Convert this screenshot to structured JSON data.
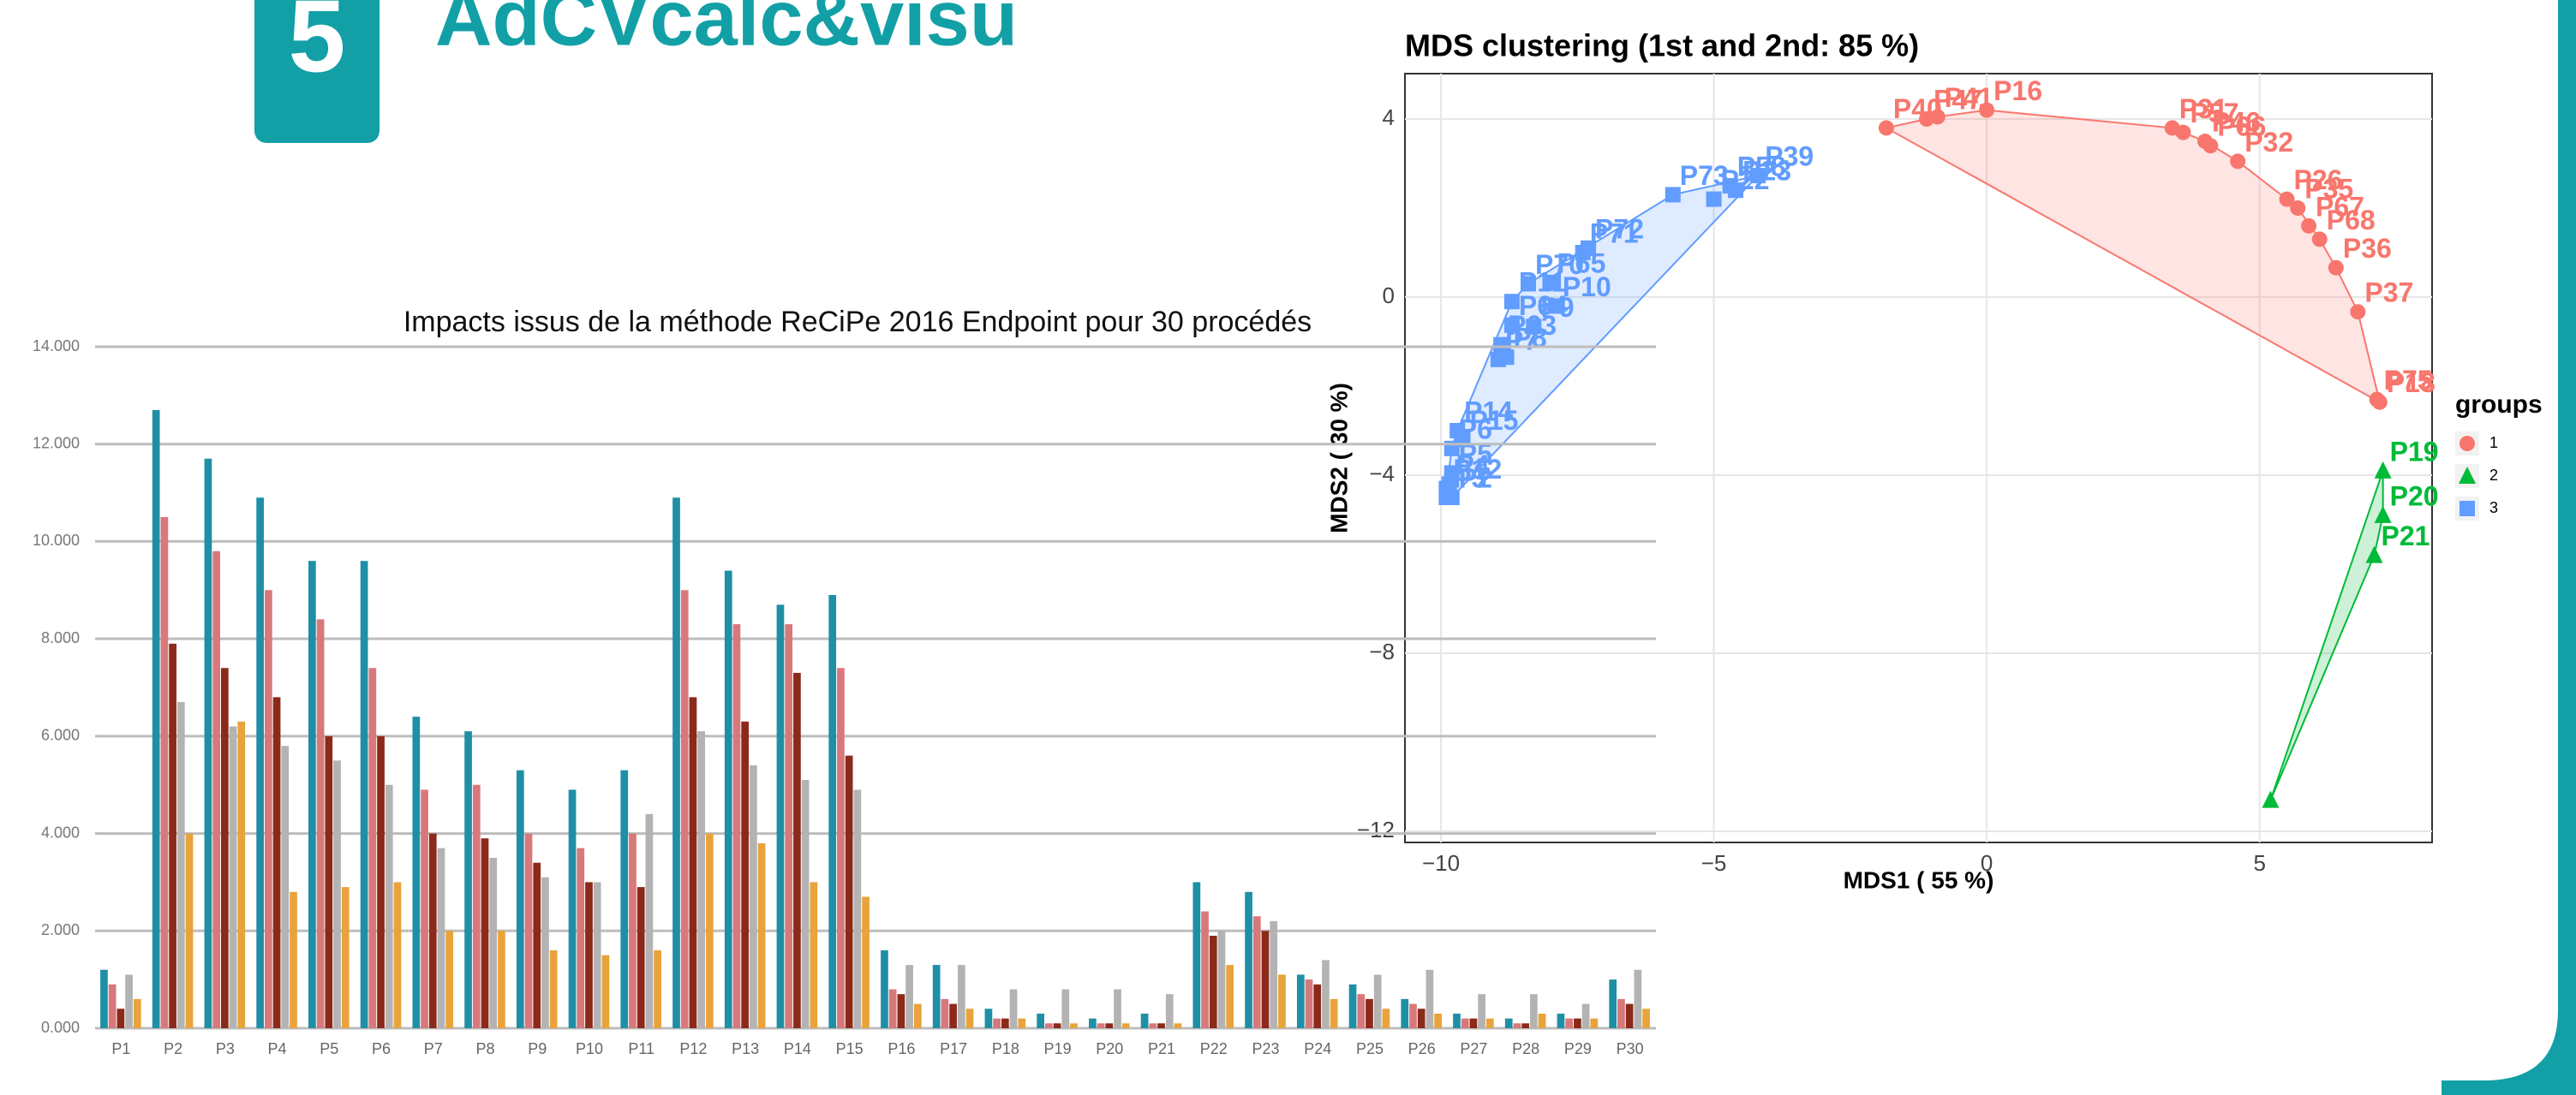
{
  "header": {
    "badge": "5",
    "title": "AdCVcalc&visu"
  },
  "chart_data": [
    {
      "type": "bar",
      "title": "Impacts issus de la méthode ReCiPe 2016 Endpoint pour 30 procédés",
      "categories": [
        "P1",
        "P2",
        "P3",
        "P4",
        "P5",
        "P6",
        "P7",
        "P8",
        "P9",
        "P10",
        "P11",
        "P12",
        "P13",
        "P14",
        "P15",
        "P16",
        "P17",
        "P18",
        "P19",
        "P20",
        "P21",
        "P22",
        "P23",
        "P24",
        "P25",
        "P26",
        "P27",
        "P28",
        "P29",
        "P30"
      ],
      "series": [
        {
          "color": "#1f8fa6",
          "values": [
            1200,
            12700,
            11700,
            10900,
            9600,
            9600,
            6400,
            6100,
            5300,
            4900,
            5300,
            10900,
            9400,
            8700,
            8900,
            1600,
            1300,
            400,
            300,
            200,
            300,
            3000,
            2800,
            1100,
            900,
            600,
            300,
            200,
            300,
            1000
          ]
        },
        {
          "color": "#d9787a",
          "values": [
            900,
            10500,
            9800,
            9000,
            8400,
            7400,
            4900,
            5000,
            4000,
            3700,
            4000,
            9000,
            8300,
            8300,
            7400,
            800,
            600,
            200,
            100,
            100,
            100,
            2400,
            2300,
            1000,
            700,
            500,
            200,
            100,
            200,
            600
          ]
        },
        {
          "color": "#8b2a1a",
          "values": [
            400,
            7900,
            7400,
            6800,
            6000,
            6000,
            4000,
            3900,
            3400,
            3000,
            2900,
            6800,
            6300,
            7300,
            5600,
            700,
            500,
            200,
            100,
            100,
            100,
            1900,
            2000,
            900,
            600,
            400,
            200,
            100,
            200,
            500
          ]
        },
        {
          "color": "#b3b3b3",
          "values": [
            1100,
            6700,
            6200,
            5800,
            5500,
            5000,
            3700,
            3500,
            3100,
            3000,
            4400,
            6100,
            5400,
            5100,
            4900,
            1300,
            1300,
            800,
            800,
            800,
            700,
            2000,
            2200,
            1400,
            1100,
            1200,
            700,
            700,
            500,
            1200
          ]
        },
        {
          "color": "#e8a33c",
          "values": [
            600,
            4000,
            6300,
            2800,
            2900,
            3000,
            2000,
            2000,
            1600,
            1500,
            1600,
            4000,
            3800,
            3000,
            2700,
            500,
            400,
            200,
            100,
            100,
            100,
            1300,
            1100,
            600,
            400,
            300,
            200,
            300,
            200,
            400
          ]
        }
      ],
      "ylim": [
        0,
        14000
      ],
      "yticks": [
        {
          "value": 0,
          "label": "0.000"
        },
        {
          "value": 2000,
          "label": "2.000"
        },
        {
          "value": 4000,
          "label": "4.000"
        },
        {
          "value": 6000,
          "label": "6.000"
        },
        {
          "value": 8000,
          "label": "8.000"
        },
        {
          "value": 10000,
          "label": "10.000"
        },
        {
          "value": 12000,
          "label": "12.000"
        },
        {
          "value": 14000,
          "label": "14.000"
        }
      ],
      "grid": true
    },
    {
      "type": "scatter",
      "title": "MDS clustering (1st and 2nd: 85 %)",
      "x_label": "MDS1 ( 55 %)",
      "y_label": "MDS2 ( 30 %)",
      "legend_title": "groups",
      "xlim": [
        -10.66,
        8.16
      ],
      "ylim": [
        -12.25,
        5.02
      ],
      "xticks": [
        {
          "value": -10,
          "label": "−10"
        },
        {
          "value": -5,
          "label": "−5"
        },
        0,
        5
      ],
      "yticks": [
        4,
        0,
        {
          "value": -4,
          "label": "−4"
        },
        {
          "value": -8,
          "label": "−8"
        },
        {
          "value": -12,
          "label": "−12"
        }
      ],
      "grid": true,
      "hull": true,
      "series": [
        {
          "name": "1",
          "color": "#F8766D",
          "marker": "circle",
          "labels": [
            "P40",
            "P47",
            "P41",
            "P16",
            "P57",
            "P31",
            "P46",
            "P66",
            "P32",
            "P26",
            "P35",
            "P67",
            "P68",
            "P36",
            "P37",
            "P18",
            "P75"
          ],
          "x": [
            -1.84,
            -1.1,
            -0.9,
            0.0,
            3.6,
            3.4,
            4.0,
            4.1,
            4.6,
            5.5,
            5.7,
            5.9,
            6.1,
            6.4,
            6.8,
            7.2,
            7.15
          ],
          "y": [
            3.8,
            4.0,
            4.05,
            4.2,
            3.7,
            3.8,
            3.5,
            3.4,
            3.05,
            2.2,
            2.0,
            1.6,
            1.3,
            0.66,
            -0.33,
            -2.36,
            -2.3
          ]
        },
        {
          "name": "2",
          "color": "#00BA38",
          "marker": "triangle",
          "labels": [
            "P19",
            "P20",
            "P21",
            null
          ],
          "x": [
            7.26,
            7.26,
            7.1,
            5.2
          ],
          "y": [
            -3.9,
            -4.9,
            -5.8,
            -11.3
          ]
        },
        {
          "name": "3",
          "color": "#619CFF",
          "marker": "square",
          "labels": [
            "P39",
            "P23",
            "P58",
            "P22",
            "P73",
            "P72",
            "P71",
            "P65",
            "P70",
            "P11",
            "P10",
            "P64",
            "P9",
            "P63",
            "P7",
            "P8",
            "P14",
            "P6",
            "P15",
            "P5",
            "P12",
            "P4",
            "P3",
            "P2"
          ],
          "x": [
            -4.19,
            -4.6,
            -4.7,
            -5.0,
            -5.75,
            -7.3,
            -7.4,
            -8.0,
            -8.4,
            -8.7,
            -7.9,
            -8.7,
            -8.3,
            -8.9,
            -8.95,
            -8.8,
            -9.7,
            -9.8,
            -9.6,
            -9.8,
            -9.9,
            -9.85,
            -9.9,
            -9.8
          ],
          "y": [
            2.73,
            2.4,
            2.5,
            2.2,
            2.3,
            1.1,
            1.0,
            0.33,
            0.3,
            -0.1,
            -0.2,
            -0.63,
            -0.66,
            -1.07,
            -1.4,
            -1.35,
            -3.0,
            -3.4,
            -3.2,
            -3.95,
            -4.3,
            -4.2,
            -4.5,
            -4.5
          ]
        }
      ]
    }
  ]
}
